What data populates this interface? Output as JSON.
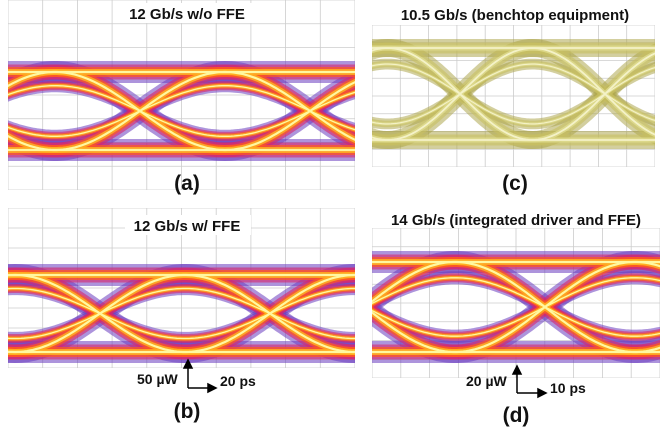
{
  "panels": [
    {
      "title": "12 Gb/s w/o FFE",
      "label": "(a)"
    },
    {
      "title": "12 Gb/s w/ FFE",
      "label": "(b)",
      "scale": {
        "y": "50 µW",
        "x": "20 ps"
      }
    },
    {
      "title": "10.5 Gb/s (benchtop equipment)",
      "label": "(c)"
    },
    {
      "title": "14 Gb/s  (integrated driver and FFE)",
      "label": "(d)",
      "scale": {
        "y": "20 µW",
        "x": "10 ps"
      }
    }
  ]
}
